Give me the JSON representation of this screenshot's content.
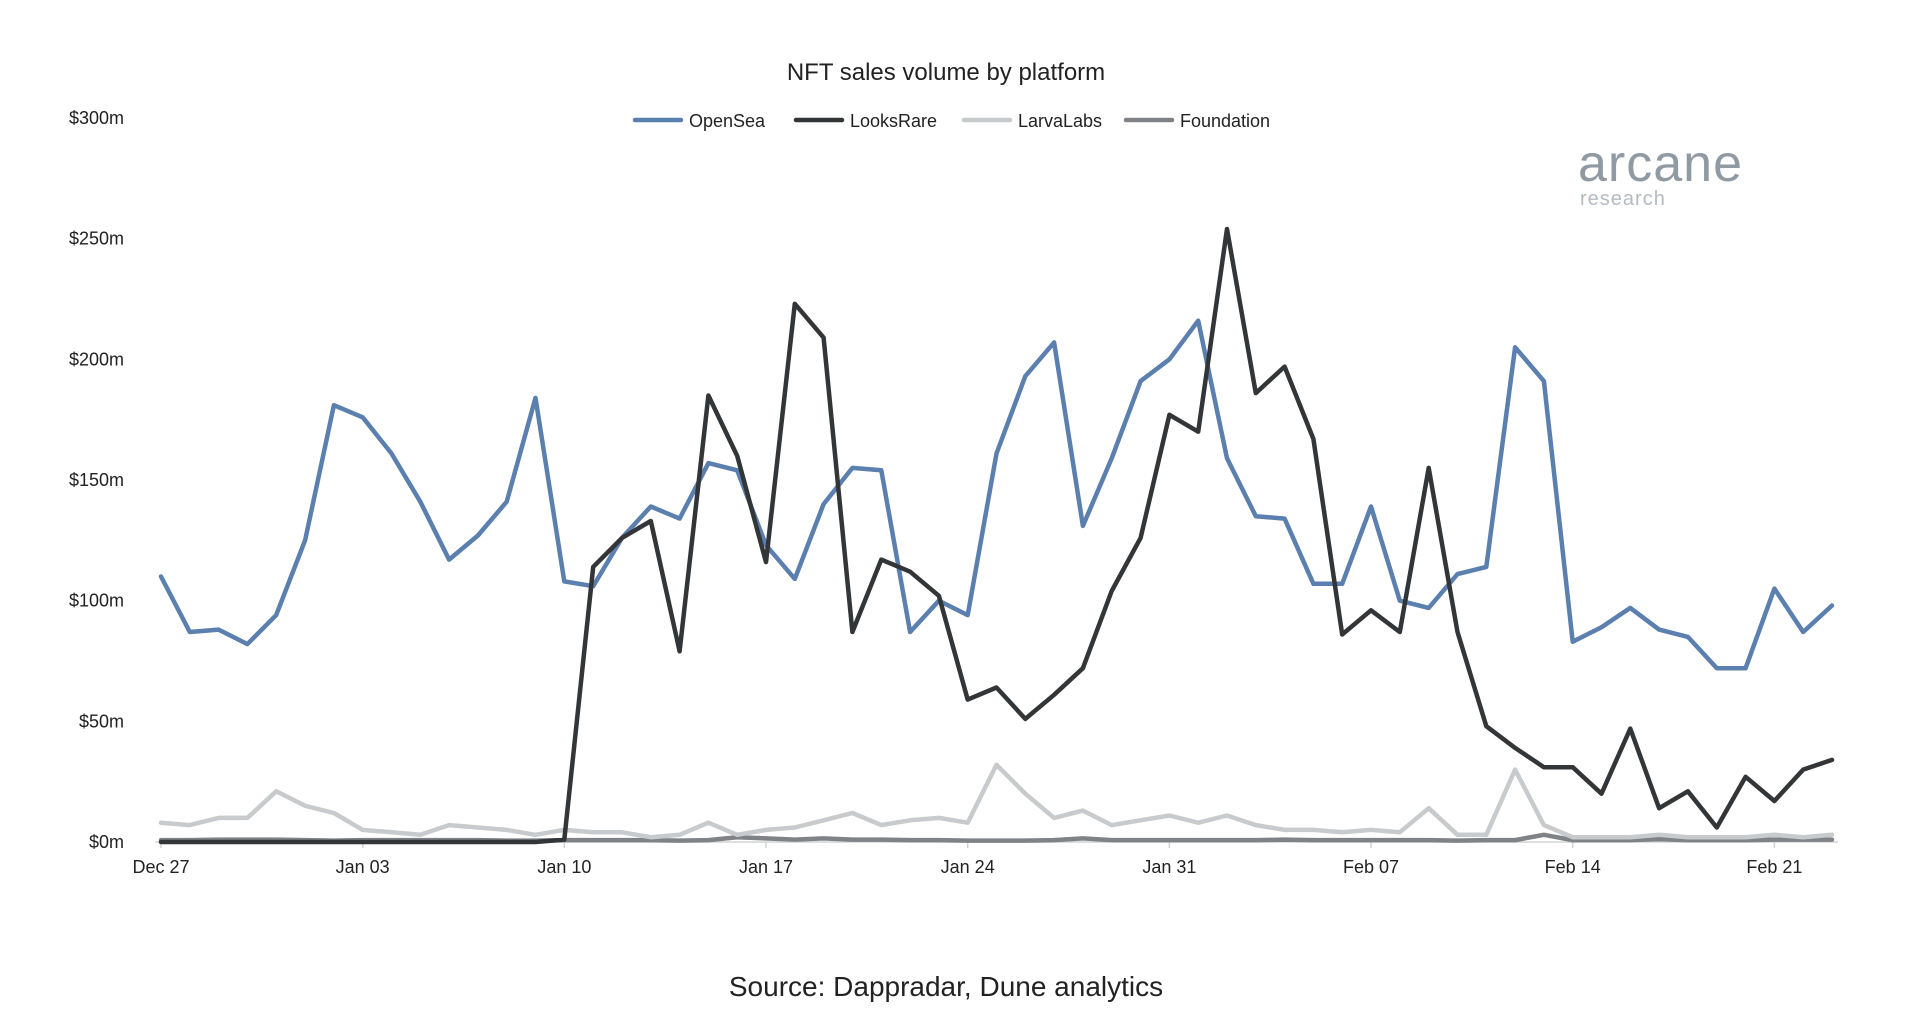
{
  "chart_data": {
    "type": "line",
    "title": "NFT sales volume by platform",
    "xlabel": "",
    "ylabel": "",
    "x_start": "Dec 27",
    "x_end": "Feb 23",
    "x_ticks": [
      "Dec 27",
      "Jan 03",
      "Jan 10",
      "Jan 17",
      "Jan 24",
      "Jan 31",
      "Feb 07",
      "Feb 14",
      "Feb 21"
    ],
    "y_ticks": [
      "$0m",
      "$50m",
      "$100m",
      "$150m",
      "$200m",
      "$250m",
      "$300m"
    ],
    "ylim": [
      0,
      300
    ],
    "unit": "$m",
    "grid": false,
    "legend_position": "top-center",
    "series": [
      {
        "name": "OpenSea",
        "color": "#5b7fae",
        "values": [
          110,
          87,
          88,
          82,
          94,
          125,
          181,
          176,
          161,
          141,
          117,
          127,
          141,
          184,
          108,
          106,
          126,
          139,
          134,
          157,
          154,
          123,
          109,
          140,
          155,
          154,
          87,
          100,
          94,
          161,
          193,
          207,
          131,
          159,
          191,
          200,
          216,
          159,
          135,
          134,
          107,
          107,
          139,
          100,
          97,
          111,
          114,
          205,
          191,
          83,
          89,
          97,
          88,
          85,
          72,
          72,
          105,
          87,
          98
        ]
      },
      {
        "name": "LooksRare",
        "color": "#333638",
        "values": [
          0,
          0,
          0,
          0,
          0,
          0,
          0,
          0,
          0,
          0,
          0,
          0,
          0,
          0,
          1,
          114,
          126,
          133,
          79,
          185,
          160,
          116,
          223,
          209,
          87,
          117,
          112,
          102,
          59,
          64,
          51,
          61,
          72,
          104,
          126,
          177,
          170,
          254,
          186,
          197,
          167,
          86,
          96,
          87,
          155,
          87,
          48,
          39,
          31,
          31,
          20,
          47,
          14,
          21,
          6,
          27,
          17,
          30,
          34
        ]
      },
      {
        "name": "LarvaLabs",
        "color": "#c8cbce",
        "values": [
          8,
          7,
          10,
          10,
          21,
          15,
          12,
          5,
          4,
          3,
          7,
          6,
          5,
          3,
          5,
          4,
          4,
          2,
          3,
          8,
          3,
          5,
          6,
          9,
          12,
          7,
          9,
          10,
          8,
          32,
          20,
          10,
          13,
          7,
          9,
          11,
          8,
          11,
          7,
          5,
          5,
          4,
          5,
          4,
          14,
          3,
          3,
          30,
          7,
          2,
          2,
          2,
          3,
          2,
          2,
          2,
          3,
          2,
          3
        ]
      },
      {
        "name": "Foundation",
        "color": "#7f8387",
        "values": [
          0.8,
          0.8,
          1,
          1,
          1,
          0.8,
          0.6,
          0.8,
          0.8,
          0.8,
          0.8,
          0.8,
          0.6,
          0.6,
          0.8,
          0.8,
          0.8,
          0.8,
          0.6,
          0.8,
          2,
          1.5,
          1,
          1.5,
          1,
          1,
          0.8,
          0.8,
          0.6,
          0.6,
          0.6,
          0.8,
          1.5,
          0.8,
          0.8,
          0.8,
          0.8,
          0.8,
          0.8,
          1,
          0.8,
          0.8,
          0.8,
          0.8,
          0.8,
          0.6,
          0.8,
          0.8,
          3,
          0.8,
          0.8,
          0.8,
          1.2,
          0.8,
          0.8,
          0.8,
          1,
          1,
          1
        ]
      }
    ]
  },
  "branding": {
    "logo_main": "arcane",
    "logo_sub": "research",
    "logo_color": "#8f9aa3"
  },
  "footer": {
    "source": "Source: Dappradar, Dune analytics"
  }
}
